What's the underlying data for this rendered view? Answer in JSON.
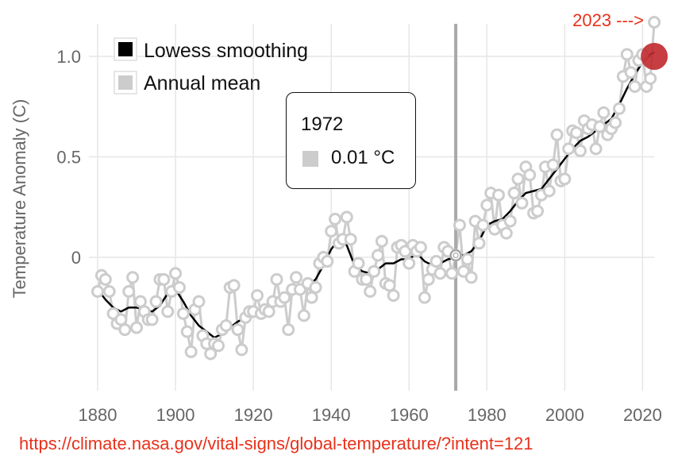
{
  "chart_data": {
    "type": "line",
    "title": "",
    "xlabel": "",
    "ylabel": "Temperature Anomaly (C)",
    "xlim": [
      1878,
      2025
    ],
    "ylim": [
      -0.65,
      1.2
    ],
    "x_ticks": [
      1880,
      1900,
      1920,
      1940,
      1960,
      1980,
      2000,
      2020
    ],
    "x_tick_labels": [
      "1880",
      "1900",
      "1920",
      "1940",
      "1960",
      "1980",
      "2000",
      "2020"
    ],
    "y_ticks": [
      0,
      0.5,
      1.0
    ],
    "y_tick_labels": [
      "0",
      "0.5",
      "1.0"
    ],
    "grid": true,
    "legend_position": "top-left",
    "series": [
      {
        "name": "Lowess smoothing",
        "color": "#000000",
        "x": [
          1880,
          1882,
          1884,
          1886,
          1888,
          1890,
          1892,
          1894,
          1896,
          1898,
          1900,
          1902,
          1904,
          1906,
          1908,
          1910,
          1912,
          1914,
          1916,
          1918,
          1920,
          1922,
          1924,
          1926,
          1928,
          1930,
          1932,
          1934,
          1936,
          1938,
          1940,
          1942,
          1944,
          1946,
          1948,
          1950,
          1952,
          1954,
          1956,
          1958,
          1960,
          1962,
          1964,
          1966,
          1968,
          1970,
          1972,
          1974,
          1976,
          1978,
          1980,
          1982,
          1984,
          1986,
          1988,
          1990,
          1992,
          1994,
          1996,
          1998,
          2000,
          2002,
          2004,
          2006,
          2008,
          2010,
          2012,
          2014,
          2016,
          2018,
          2020,
          2022,
          2023
        ],
        "values": [
          -0.16,
          -0.21,
          -0.25,
          -0.27,
          -0.25,
          -0.25,
          -0.26,
          -0.27,
          -0.24,
          -0.18,
          -0.16,
          -0.22,
          -0.29,
          -0.34,
          -0.37,
          -0.4,
          -0.38,
          -0.35,
          -0.32,
          -0.3,
          -0.27,
          -0.26,
          -0.24,
          -0.21,
          -0.19,
          -0.16,
          -0.17,
          -0.14,
          -0.11,
          -0.04,
          0.04,
          0.09,
          0.06,
          -0.04,
          -0.07,
          -0.08,
          -0.06,
          -0.03,
          -0.03,
          -0.01,
          -0.01,
          0.02,
          -0.02,
          -0.04,
          -0.03,
          -0.01,
          0.0,
          0.01,
          0.03,
          0.08,
          0.16,
          0.18,
          0.19,
          0.23,
          0.28,
          0.32,
          0.33,
          0.34,
          0.39,
          0.44,
          0.49,
          0.54,
          0.58,
          0.6,
          0.63,
          0.66,
          0.69,
          0.76,
          0.84,
          0.91,
          0.97,
          1.01,
          1.02
        ]
      },
      {
        "name": "Annual mean",
        "color": "#cccccc",
        "x": [
          1880,
          1881,
          1882,
          1883,
          1884,
          1885,
          1886,
          1887,
          1888,
          1889,
          1890,
          1891,
          1892,
          1893,
          1894,
          1895,
          1896,
          1897,
          1898,
          1899,
          1900,
          1901,
          1902,
          1903,
          1904,
          1905,
          1906,
          1907,
          1908,
          1909,
          1910,
          1911,
          1912,
          1913,
          1914,
          1915,
          1916,
          1917,
          1918,
          1919,
          1920,
          1921,
          1922,
          1923,
          1924,
          1925,
          1926,
          1927,
          1928,
          1929,
          1930,
          1931,
          1932,
          1933,
          1934,
          1935,
          1936,
          1937,
          1938,
          1939,
          1940,
          1941,
          1942,
          1943,
          1944,
          1945,
          1946,
          1947,
          1948,
          1949,
          1950,
          1951,
          1952,
          1953,
          1954,
          1955,
          1956,
          1957,
          1958,
          1959,
          1960,
          1961,
          1962,
          1963,
          1964,
          1965,
          1966,
          1967,
          1968,
          1969,
          1970,
          1971,
          1972,
          1973,
          1974,
          1975,
          1976,
          1977,
          1978,
          1979,
          1980,
          1981,
          1982,
          1983,
          1984,
          1985,
          1986,
          1987,
          1988,
          1989,
          1990,
          1991,
          1992,
          1993,
          1994,
          1995,
          1996,
          1997,
          1998,
          1999,
          2000,
          2001,
          2002,
          2003,
          2004,
          2005,
          2006,
          2007,
          2008,
          2009,
          2010,
          2011,
          2012,
          2013,
          2014,
          2015,
          2016,
          2017,
          2018,
          2019,
          2020,
          2021,
          2022,
          2023
        ],
        "values": [
          -0.17,
          -0.09,
          -0.11,
          -0.17,
          -0.28,
          -0.33,
          -0.31,
          -0.36,
          -0.17,
          -0.1,
          -0.35,
          -0.22,
          -0.27,
          -0.31,
          -0.31,
          -0.22,
          -0.11,
          -0.11,
          -0.27,
          -0.17,
          -0.08,
          -0.15,
          -0.28,
          -0.37,
          -0.47,
          -0.26,
          -0.22,
          -0.39,
          -0.43,
          -0.48,
          -0.43,
          -0.44,
          -0.36,
          -0.34,
          -0.15,
          -0.14,
          -0.36,
          -0.46,
          -0.3,
          -0.27,
          -0.27,
          -0.19,
          -0.28,
          -0.26,
          -0.27,
          -0.22,
          -0.11,
          -0.22,
          -0.2,
          -0.36,
          -0.16,
          -0.1,
          -0.16,
          -0.29,
          -0.13,
          -0.2,
          -0.15,
          -0.03,
          -0.0,
          -0.02,
          0.13,
          0.19,
          0.07,
          0.09,
          0.2,
          0.09,
          -0.07,
          -0.03,
          -0.11,
          -0.11,
          -0.17,
          -0.07,
          0.01,
          0.08,
          -0.13,
          -0.14,
          -0.19,
          0.05,
          0.06,
          0.03,
          -0.03,
          0.06,
          0.03,
          0.05,
          -0.2,
          -0.11,
          -0.06,
          -0.02,
          -0.08,
          0.05,
          0.03,
          -0.08,
          0.01,
          0.16,
          -0.07,
          -0.01,
          -0.1,
          0.18,
          0.07,
          0.16,
          0.26,
          0.32,
          0.14,
          0.31,
          0.16,
          0.12,
          0.18,
          0.32,
          0.39,
          0.27,
          0.45,
          0.41,
          0.22,
          0.23,
          0.31,
          0.45,
          0.33,
          0.46,
          0.61,
          0.38,
          0.39,
          0.54,
          0.63,
          0.62,
          0.53,
          0.68,
          0.64,
          0.66,
          0.54,
          0.65,
          0.72,
          0.61,
          0.64,
          0.67,
          0.74,
          0.9,
          1.01,
          0.92,
          0.85,
          0.98,
          1.01,
          0.85,
          0.89,
          1.17
        ]
      }
    ],
    "highlight": {
      "year": 1972,
      "year_label": "1972",
      "value_label": "0.01 °C",
      "value": 0.01
    },
    "endpoint": {
      "year": 2023,
      "value": 1.0,
      "color": "#c0282e"
    },
    "annotation": "2023 --->",
    "source": "https://climate.nasa.gov/vital-signs/global-temperature/?intent=121"
  }
}
